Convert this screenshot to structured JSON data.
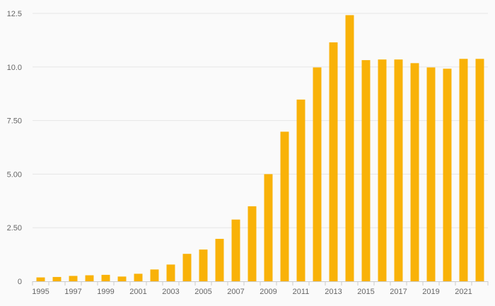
{
  "chart_data": {
    "type": "bar",
    "title": "",
    "xlabel": "",
    "ylabel": "",
    "categories": [
      "1995",
      "1996",
      "1997",
      "1998",
      "1999",
      "2000",
      "2001",
      "2002",
      "2003",
      "2004",
      "2005",
      "2006",
      "2007",
      "2008",
      "2009",
      "2010",
      "2011",
      "2012",
      "2013",
      "2014",
      "2015",
      "2016",
      "2017",
      "2018",
      "2019",
      "2020",
      "2021",
      "2022"
    ],
    "values": [
      0.18,
      0.2,
      0.25,
      0.28,
      0.3,
      0.22,
      0.35,
      0.55,
      0.78,
      1.28,
      1.48,
      1.98,
      2.88,
      3.5,
      5.0,
      6.98,
      8.48,
      9.98,
      11.15,
      12.42,
      10.32,
      10.35,
      10.35,
      10.18,
      9.98,
      9.92,
      10.38,
      10.38
    ],
    "x_tick_labels": [
      "1995",
      "1997",
      "1999",
      "2001",
      "2003",
      "2005",
      "2007",
      "2009",
      "2011",
      "2013",
      "2015",
      "2017",
      "2019",
      "2021"
    ],
    "y_ticks": [
      0,
      2.5,
      5,
      7.5,
      10,
      12.5
    ],
    "y_tick_labels": [
      "0",
      "2.50",
      "5.00",
      "7.50",
      "10.0",
      "12.5"
    ],
    "ylim": [
      0,
      12.5
    ],
    "grid": true,
    "bar_color": "#f9b208",
    "grid_color": "#e6e6e6",
    "axis_color": "#cccccc",
    "label_color": "#666666"
  }
}
